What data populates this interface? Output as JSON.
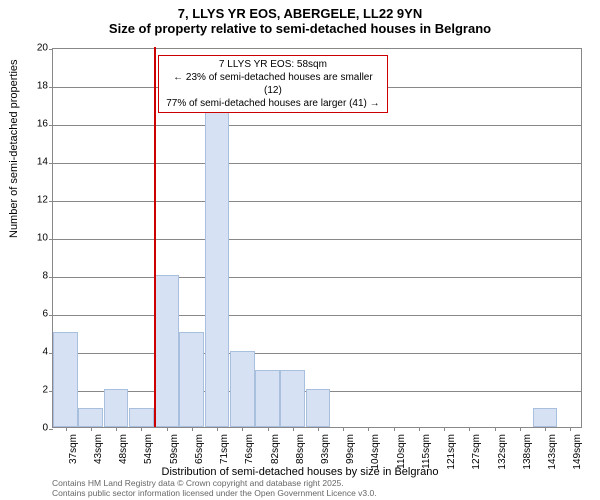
{
  "title": {
    "line1": "7, LLYS YR EOS, ABERGELE, LL22 9YN",
    "line2": "Size of property relative to semi-detached houses in Belgrano"
  },
  "chart": {
    "type": "histogram",
    "ylim": [
      0,
      20
    ],
    "ytick_step": 2,
    "bar_fill": "#d6e2f3",
    "bar_border": "#a9bfde",
    "grid_color": "#888888",
    "background_color": "#ffffff",
    "ref_line_color": "#cc0000",
    "ref_line_x_index": 4,
    "x_labels": [
      "37sqm",
      "43sqm",
      "48sqm",
      "54sqm",
      "59sqm",
      "65sqm",
      "71sqm",
      "76sqm",
      "82sqm",
      "88sqm",
      "93sqm",
      "99sqm",
      "104sqm",
      "110sqm",
      "115sqm",
      "121sqm",
      "127sqm",
      "132sqm",
      "138sqm",
      "143sqm",
      "149sqm"
    ],
    "values": [
      5,
      1,
      2,
      1,
      8,
      5,
      17,
      4,
      3,
      3,
      2,
      0,
      0,
      0,
      0,
      0,
      0,
      0,
      0,
      1,
      0
    ]
  },
  "annotation": {
    "line1": "7 LLYS YR EOS: 58sqm",
    "line2": "← 23% of semi-detached houses are smaller (12)",
    "line3": "77% of semi-detached houses are larger (41) →"
  },
  "axis": {
    "ylabel": "Number of semi-detached properties",
    "xlabel": "Distribution of semi-detached houses by size in Belgrano"
  },
  "footer": {
    "line1": "Contains HM Land Registry data © Crown copyright and database right 2025.",
    "line2": "Contains public sector information licensed under the Open Government Licence v3.0."
  }
}
